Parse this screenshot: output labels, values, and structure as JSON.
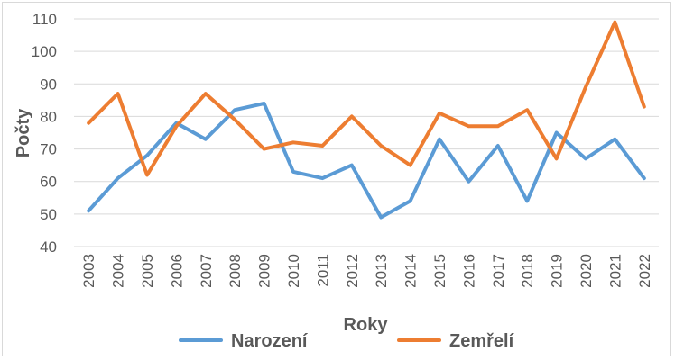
{
  "chart_data": {
    "type": "line",
    "title": "",
    "xlabel": "Roky",
    "ylabel": "Počty",
    "ylim": [
      40,
      110
    ],
    "yticks": [
      40,
      50,
      60,
      70,
      80,
      90,
      100,
      110
    ],
    "grid": "horizontal",
    "legend_position": "bottom",
    "categories": [
      "2003",
      "2004",
      "2005",
      "2006",
      "2007",
      "2008",
      "2009",
      "2010",
      "2011",
      "2012",
      "2013",
      "2014",
      "2015",
      "2016",
      "2017",
      "2018",
      "2019",
      "2020",
      "2021",
      "2022"
    ],
    "series": [
      {
        "name": "Narození",
        "color": "#5B9BD5",
        "values": [
          51,
          61,
          68,
          78,
          73,
          82,
          84,
          63,
          61,
          65,
          49,
          54,
          73,
          60,
          71,
          54,
          75,
          67,
          73,
          61
        ]
      },
      {
        "name": "Zemřelí",
        "color": "#ED7D31",
        "values": [
          78,
          87,
          62,
          77,
          87,
          79,
          70,
          72,
          71,
          80,
          71,
          65,
          81,
          77,
          77,
          82,
          67,
          89,
          109,
          83
        ]
      }
    ]
  }
}
